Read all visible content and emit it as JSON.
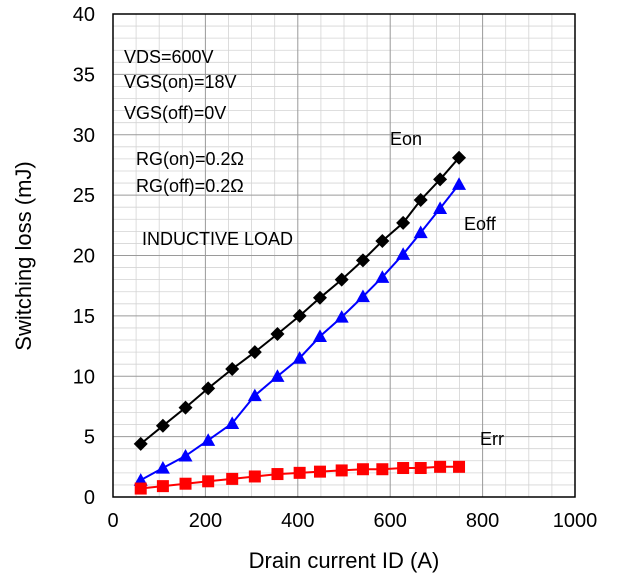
{
  "chart_data": {
    "type": "line",
    "xlabel": "Drain current ID (A)",
    "ylabel": "Switching loss (mJ)",
    "xlim": [
      0,
      1000
    ],
    "ylim": [
      0,
      40
    ],
    "xticks": [
      0,
      200,
      400,
      600,
      800,
      1000
    ],
    "yticks": [
      0,
      5,
      10,
      15,
      20,
      25,
      30,
      35,
      40
    ],
    "grid": "major and minor",
    "annotations": [
      "VDS=600V",
      "VGS(on)=18V",
      "VGS(off)=0V",
      "RG(on)=0.2Ω",
      "RG(off)=0.2Ω",
      "INDUCTIVE LOAD"
    ],
    "x": [
      60,
      108,
      157,
      206,
      258,
      307,
      356,
      404,
      448,
      495,
      541,
      583,
      628,
      666,
      708,
      749
    ],
    "series": [
      {
        "name": "Eon",
        "color": "#000000",
        "marker": "diamond",
        "values": [
          4.4,
          5.9,
          7.4,
          9.0,
          10.6,
          12.0,
          13.5,
          15.0,
          16.5,
          18.0,
          19.6,
          21.2,
          22.7,
          24.6,
          26.3,
          28.1
        ]
      },
      {
        "name": "Eoff",
        "color": "#0000ff",
        "marker": "triangle",
        "values": [
          1.4,
          2.4,
          3.4,
          4.7,
          6.1,
          8.4,
          10.0,
          11.5,
          13.3,
          14.9,
          16.6,
          18.2,
          20.1,
          21.9,
          23.9,
          25.9
        ]
      },
      {
        "name": "Err",
        "color": "#ff0000",
        "marker": "square",
        "values": [
          0.7,
          0.9,
          1.1,
          1.3,
          1.5,
          1.7,
          1.9,
          2.0,
          2.1,
          2.2,
          2.3,
          2.3,
          2.4,
          2.4,
          2.5,
          2.5
        ]
      }
    ]
  }
}
